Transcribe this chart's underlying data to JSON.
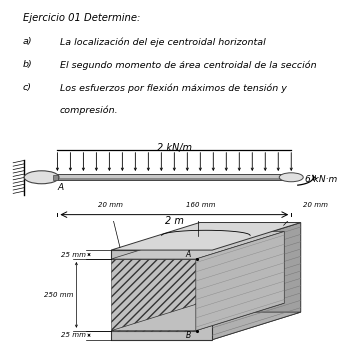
{
  "title_line1": "Ejercicio 01 Determine:",
  "item_a_label": "a)",
  "item_a_text": "La localización del eje centroidal horizontal",
  "item_b_label": "b)",
  "item_b_text": "El segundo momento de área centroidal de la sección",
  "item_c_label": "c)",
  "item_c_text1": "Los esfuerzos por flexión máximos de tensión y",
  "item_c_text2": "compresión.",
  "beam_load_label": "2 kN/m",
  "beam_length_label": "2 m",
  "beam_moment_label": "6 kN·m",
  "beam_point_A": "A",
  "dim_20mm_left": "20 mm",
  "dim_160mm": "160 mm",
  "dim_20mm_right": "20 mm",
  "dim_25mm_top": "25 mm",
  "dim_250mm": "250 mm",
  "dim_25mm_bot": "25 mm",
  "point_A": "A",
  "point_B": "B",
  "bg_color": "#ffffff",
  "text_color": "#000000",
  "beam_color": "#c8c8c8",
  "beam_edge_color": "#444444",
  "wall_color": "#e0e0e0",
  "section_front_color": "#b8b8b8",
  "section_side_color": "#989898",
  "section_top_color": "#d4d4d4",
  "hatch_color": "#666666"
}
